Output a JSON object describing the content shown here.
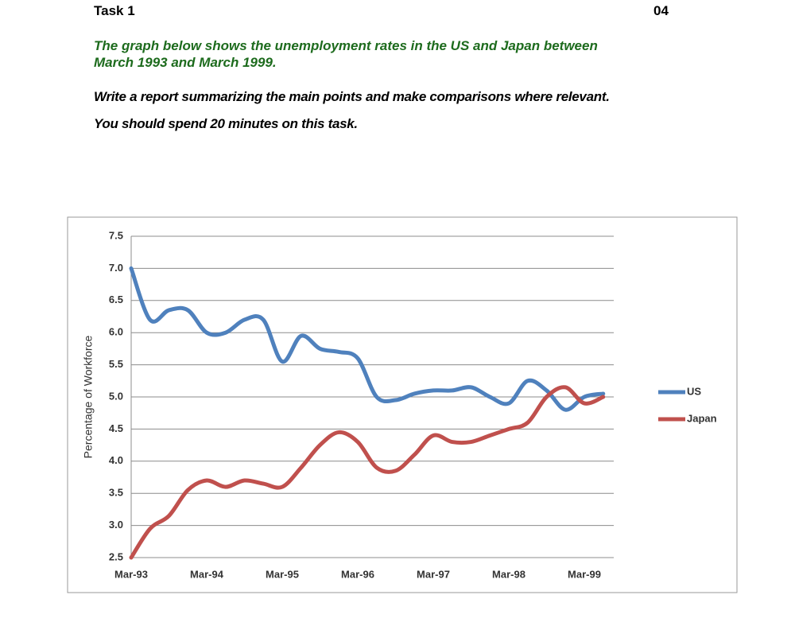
{
  "header": {
    "task": "Task 1",
    "page": "04"
  },
  "prompt": {
    "title_lines": [
      "The graph below shows the unemployment rates in the US and Japan between",
      "March 1993 and March 1999."
    ],
    "instruction": "Write a report summarizing the main points and make comparisons where relevant.",
    "time": "You should spend 20 minutes on this task."
  },
  "chart_data": {
    "type": "line",
    "y_label": "Percentage of Workforce",
    "categories": [
      "Mar-93",
      null,
      null,
      null,
      "Mar-94",
      null,
      null,
      null,
      "Mar-95",
      null,
      null,
      null,
      "Mar-96",
      null,
      null,
      null,
      "Mar-97",
      null,
      null,
      null,
      "Mar-98",
      null,
      null,
      null,
      "Mar-99",
      null
    ],
    "series": [
      {
        "name": "US",
        "color": "#4f81bd",
        "values": [
          7.0,
          6.2,
          6.35,
          6.35,
          6.0,
          6.0,
          6.2,
          6.2,
          5.55,
          5.95,
          5.75,
          5.7,
          5.6,
          5.0,
          4.95,
          5.05,
          5.1,
          5.1,
          5.15,
          5.0,
          4.9,
          5.25,
          5.1,
          4.8,
          5.0,
          5.05
        ]
      },
      {
        "name": "Japan",
        "color": "#c0504d",
        "values": [
          2.5,
          2.95,
          3.15,
          3.55,
          3.7,
          3.6,
          3.7,
          3.65,
          3.6,
          3.9,
          4.25,
          4.45,
          4.3,
          3.9,
          3.85,
          4.1,
          4.4,
          4.3,
          4.3,
          4.4,
          4.5,
          4.6,
          5.0,
          5.15,
          4.9,
          5.0
        ]
      }
    ],
    "ylim": [
      2.5,
      7.5
    ],
    "yticks": [
      {
        "value": 2.5,
        "label": "2.5"
      },
      {
        "value": 3,
        "label": "3.0"
      },
      3.5,
      {
        "value": 4,
        "label": "4.0"
      },
      4.5,
      {
        "value": 5,
        "label": "5.0"
      },
      5.5,
      {
        "value": 6,
        "label": "6.0"
      },
      6.5,
      {
        "value": 7,
        "label": "7.0"
      },
      7.5
    ],
    "grid": true,
    "legend": "right"
  }
}
